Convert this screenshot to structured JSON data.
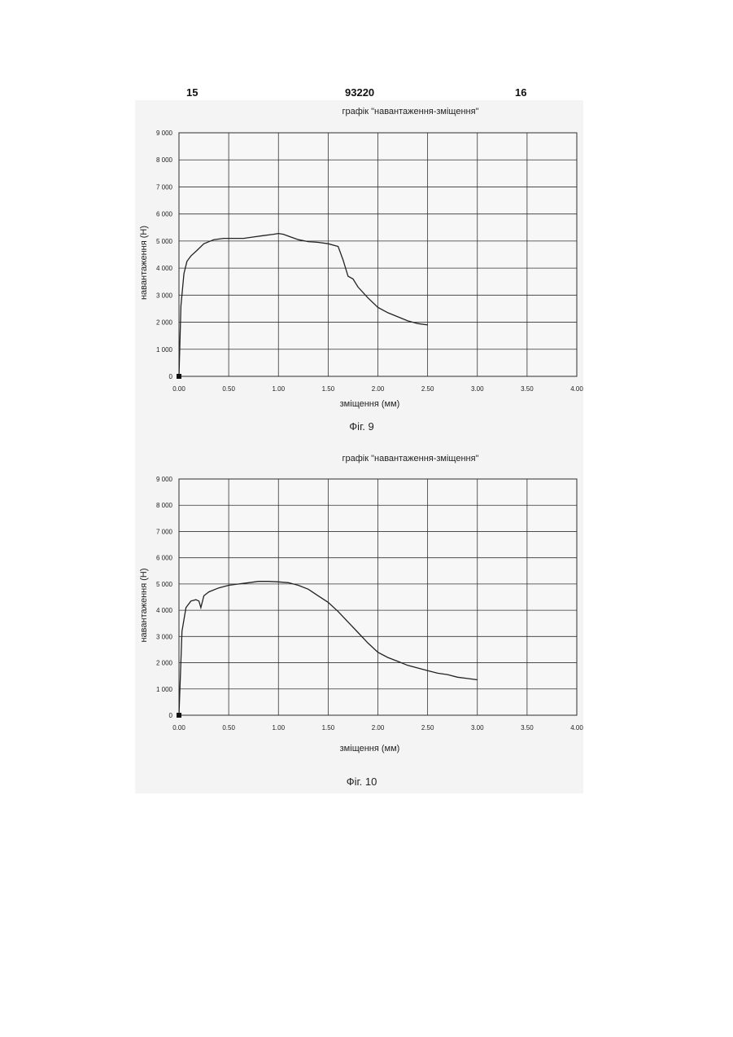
{
  "header": {
    "page_left": "15",
    "patent_number": "93220",
    "page_right": "16"
  },
  "chart_data": [
    {
      "type": "line",
      "title": "графік \"навантаження-зміщення\"",
      "xlabel": "зміщення (мм)",
      "ylabel": "навантаження (Н)",
      "caption": "Фіг. 9",
      "xlim": [
        0,
        4
      ],
      "ylim": [
        0,
        9000
      ],
      "x_ticks": [
        0,
        0.5,
        1,
        1.5,
        2,
        2.5,
        3,
        3.5,
        4
      ],
      "x_tick_labels": [
        "0.00",
        "0.50",
        "1.00",
        "1.50",
        "2.00",
        "2.50",
        "3.00",
        "3.50",
        "4.00"
      ],
      "y_ticks": [
        0,
        1000,
        2000,
        3000,
        4000,
        5000,
        6000,
        7000,
        8000,
        9000
      ],
      "y_tick_labels": [
        "0",
        "1 000",
        "2 000",
        "3 000",
        "4 000",
        "5 000",
        "6 000",
        "7 000",
        "8 000",
        "9 000"
      ],
      "grid": true,
      "series": [
        {
          "x": [
            0,
            0.02,
            0.05,
            0.08,
            0.12,
            0.18,
            0.25,
            0.35,
            0.45,
            0.55,
            0.65,
            0.75,
            0.85,
            0.95,
            1.0,
            1.05,
            1.1,
            1.2,
            1.3,
            1.4,
            1.5,
            1.6,
            1.65,
            1.7,
            1.75,
            1.8,
            1.9,
            2.0,
            2.1,
            2.2,
            2.3,
            2.4,
            2.5
          ],
          "y": [
            0,
            2600,
            3800,
            4250,
            4450,
            4650,
            4900,
            5050,
            5100,
            5100,
            5100,
            5150,
            5200,
            5250,
            5280,
            5250,
            5180,
            5050,
            4980,
            4950,
            4900,
            4800,
            4300,
            3700,
            3600,
            3300,
            2900,
            2550,
            2350,
            2200,
            2050,
            1950,
            1900
          ]
        }
      ]
    },
    {
      "type": "line",
      "title": "графік \"навантаження-зміщення\"",
      "xlabel": "зміщення (мм)",
      "ylabel": "навантаження (Н)",
      "caption": "Фіг. 10",
      "xlim": [
        0,
        4
      ],
      "ylim": [
        0,
        9000
      ],
      "x_ticks": [
        0,
        0.5,
        1,
        1.5,
        2,
        2.5,
        3,
        3.5,
        4
      ],
      "x_tick_labels": [
        "0.00",
        "0.50",
        "1.00",
        "1.50",
        "2.00",
        "2.50",
        "3.00",
        "3.50",
        "4.00"
      ],
      "y_ticks": [
        0,
        1000,
        2000,
        3000,
        4000,
        5000,
        6000,
        7000,
        8000,
        9000
      ],
      "y_tick_labels": [
        "0",
        "1 000",
        "2 000",
        "3 000",
        "4 000",
        "5 000",
        "6 000",
        "7 000",
        "8 000",
        "9 000"
      ],
      "grid": true,
      "series": [
        {
          "x": [
            0,
            0.03,
            0.07,
            0.12,
            0.17,
            0.2,
            0.22,
            0.25,
            0.3,
            0.4,
            0.5,
            0.6,
            0.7,
            0.8,
            0.9,
            1.0,
            1.1,
            1.2,
            1.3,
            1.4,
            1.5,
            1.6,
            1.7,
            1.8,
            1.9,
            2.0,
            2.1,
            2.2,
            2.3,
            2.4,
            2.5,
            2.6,
            2.7,
            2.8,
            2.9,
            3.0
          ],
          "y": [
            0,
            3200,
            4100,
            4350,
            4400,
            4350,
            4100,
            4550,
            4700,
            4850,
            4950,
            5000,
            5050,
            5100,
            5100,
            5080,
            5050,
            4950,
            4800,
            4550,
            4300,
            3950,
            3550,
            3150,
            2750,
            2400,
            2200,
            2050,
            1900,
            1800,
            1700,
            1600,
            1550,
            1450,
            1400,
            1350
          ]
        }
      ]
    }
  ]
}
